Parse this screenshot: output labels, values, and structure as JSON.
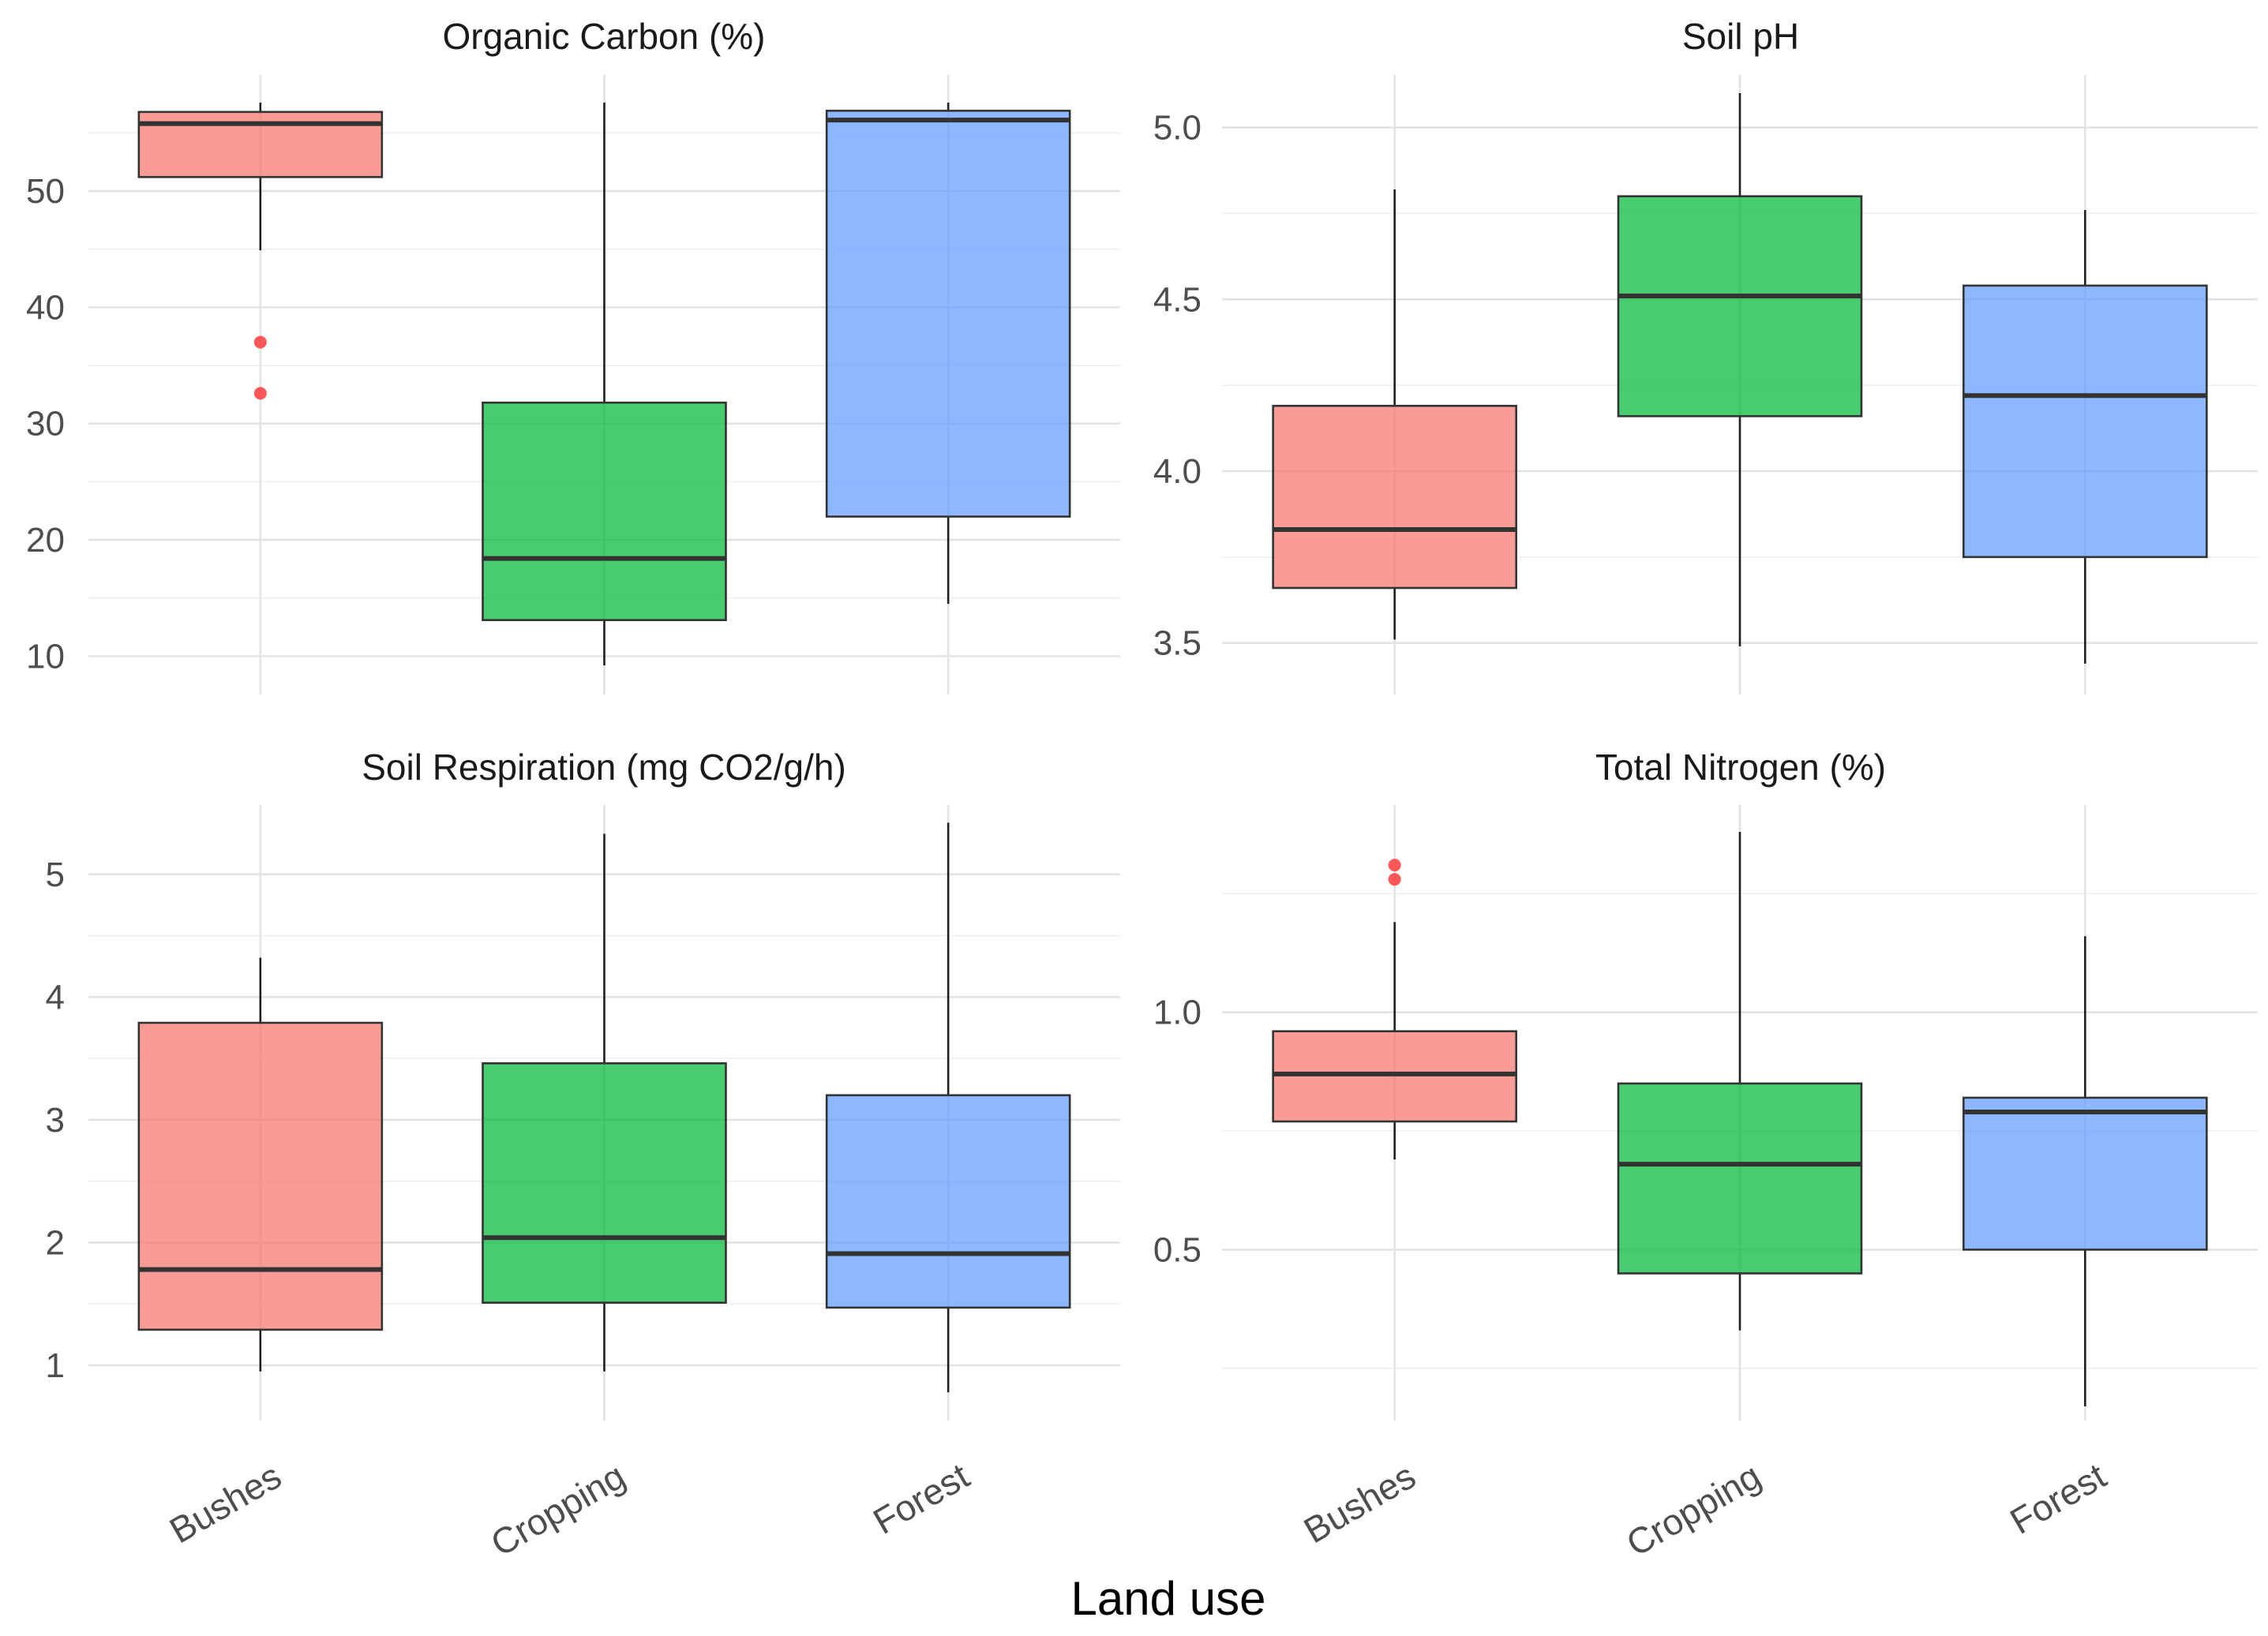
{
  "x_axis_title": "Land use",
  "categories": [
    "Bushes",
    "Cropping",
    "Forest"
  ],
  "colors": {
    "Bushes": "#F8766D",
    "Cropping": "#00BA38",
    "Forest": "#619CFF"
  },
  "outlier_color": "#FF3B3B",
  "chart_data": [
    {
      "type": "box",
      "title": "Organic Carbon (%)",
      "ylim": [
        6.7,
        59.3
      ],
      "major_ticks": [
        10,
        20,
        30,
        40,
        50
      ],
      "tick_labels": [
        "10",
        "20",
        "30",
        "40",
        "50"
      ],
      "minor_ticks": [
        15,
        25,
        35,
        45,
        55
      ],
      "boxes": [
        {
          "category": "Bushes",
          "min": 44.9,
          "q1": 51.2,
          "median": 55.8,
          "q3": 56.8,
          "max": 57.6,
          "outliers": [
            37.0,
            32.6
          ]
        },
        {
          "category": "Cropping",
          "min": 9.2,
          "q1": 13.1,
          "median": 18.4,
          "q3": 31.8,
          "max": 57.6,
          "outliers": []
        },
        {
          "category": "Forest",
          "min": 14.5,
          "q1": 22.0,
          "median": 56.1,
          "q3": 56.9,
          "max": 57.6,
          "outliers": []
        }
      ]
    },
    {
      "type": "box",
      "title": "Soil pH",
      "ylim": [
        3.35,
        5.13
      ],
      "major_ticks": [
        3.5,
        4.0,
        4.5,
        5.0
      ],
      "tick_labels": [
        "3.5",
        "4.0",
        "4.5",
        "5.0"
      ],
      "minor_ticks": [
        3.75,
        4.25,
        4.75
      ],
      "boxes": [
        {
          "category": "Bushes",
          "min": 3.51,
          "q1": 3.66,
          "median": 3.83,
          "q3": 4.19,
          "max": 4.82,
          "outliers": []
        },
        {
          "category": "Cropping",
          "min": 3.49,
          "q1": 4.16,
          "median": 4.51,
          "q3": 4.8,
          "max": 5.1,
          "outliers": []
        },
        {
          "category": "Forest",
          "min": 3.44,
          "q1": 3.75,
          "median": 4.22,
          "q3": 4.54,
          "max": 4.76,
          "outliers": []
        }
      ]
    },
    {
      "type": "box",
      "title": "Soil Respiration (mg CO2/g/h)",
      "ylim": [
        0.55,
        5.5
      ],
      "major_ticks": [
        1,
        2,
        3,
        4,
        5
      ],
      "tick_labels": [
        "1",
        "2",
        "3",
        "4",
        "5"
      ],
      "minor_ticks": [
        1.5,
        2.5,
        3.5,
        4.5
      ],
      "boxes": [
        {
          "category": "Bushes",
          "min": 0.95,
          "q1": 1.29,
          "median": 1.78,
          "q3": 3.79,
          "max": 4.32,
          "outliers": []
        },
        {
          "category": "Cropping",
          "min": 0.95,
          "q1": 1.51,
          "median": 2.04,
          "q3": 3.46,
          "max": 5.33,
          "outliers": []
        },
        {
          "category": "Forest",
          "min": 0.78,
          "q1": 1.47,
          "median": 1.91,
          "q3": 3.2,
          "max": 5.42,
          "outliers": []
        }
      ]
    },
    {
      "type": "box",
      "title": "Total Nitrogen (%)",
      "ylim": [
        0.14,
        1.42
      ],
      "major_ticks": [
        0.5,
        1.0
      ],
      "tick_labels": [
        "0.5",
        "1.0"
      ],
      "minor_ticks": [
        0.25,
        0.75,
        1.25
      ],
      "boxes": [
        {
          "category": "Bushes",
          "min": 0.69,
          "q1": 0.77,
          "median": 0.87,
          "q3": 0.96,
          "max": 1.19,
          "outliers": [
            1.31,
            1.28
          ]
        },
        {
          "category": "Cropping",
          "min": 0.33,
          "q1": 0.45,
          "median": 0.68,
          "q3": 0.85,
          "max": 1.38,
          "outliers": []
        },
        {
          "category": "Forest",
          "min": 0.17,
          "q1": 0.5,
          "median": 0.79,
          "q3": 0.82,
          "max": 1.16,
          "outliers": []
        }
      ]
    }
  ]
}
